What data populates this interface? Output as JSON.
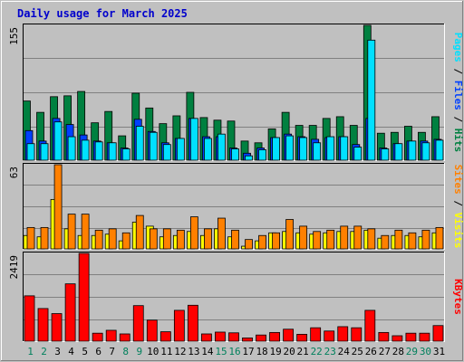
{
  "title": "Daily usage for March 2025",
  "colors": {
    "background": "#c0c0c0",
    "title": "#0000cc",
    "hits": "#008040",
    "files": "#0040ff",
    "pages": "#00e0ff",
    "visits": "#ffff00",
    "sites": "#ff8000",
    "kbytes": "#ff0000",
    "weekend_label": "#00805c",
    "weekday_label": "#000000",
    "grid": "#808080"
  },
  "chart_data": [
    {
      "type": "bar",
      "name": "hits-files-pages",
      "ymax_label": "155",
      "ymax": 155,
      "right_label": [
        "Pages",
        "Files",
        "Hits"
      ],
      "right_label_sep": " / ",
      "categories": [
        "1",
        "2",
        "3",
        "4",
        "5",
        "6",
        "7",
        "8",
        "9",
        "10",
        "11",
        "12",
        "13",
        "14",
        "15",
        "16",
        "17",
        "18",
        "19",
        "20",
        "21",
        "22",
        "23",
        "24",
        "25",
        "26",
        "27",
        "28",
        "29",
        "30",
        "31"
      ],
      "series": [
        {
          "name": "Hits",
          "values": [
            68,
            55,
            73,
            74,
            79,
            43,
            56,
            28,
            77,
            60,
            42,
            51,
            78,
            49,
            46,
            45,
            22,
            20,
            36,
            55,
            40,
            40,
            48,
            50,
            40,
            155,
            31,
            32,
            39,
            32,
            50
          ]
        },
        {
          "name": "Files",
          "values": [
            34,
            22,
            48,
            41,
            29,
            22,
            20,
            14,
            47,
            33,
            20,
            25,
            48,
            27,
            27,
            14,
            8,
            14,
            26,
            30,
            27,
            24,
            26,
            27,
            18,
            48,
            14,
            19,
            22,
            22,
            24
          ]
        },
        {
          "name": "Pages",
          "values": [
            19,
            19,
            44,
            27,
            23,
            21,
            20,
            13,
            39,
            32,
            18,
            25,
            48,
            25,
            30,
            13,
            5,
            12,
            26,
            28,
            26,
            20,
            27,
            27,
            15,
            138,
            13,
            19,
            22,
            20,
            23
          ]
        }
      ]
    },
    {
      "type": "bar",
      "name": "visits-sites",
      "ymax_label": "63",
      "ymax": 63,
      "right_label": [
        "Sites",
        "Visits"
      ],
      "right_label_sep": " / ",
      "categories": [
        "1",
        "2",
        "3",
        "4",
        "5",
        "6",
        "7",
        "8",
        "9",
        "10",
        "11",
        "12",
        "13",
        "14",
        "15",
        "16",
        "17",
        "18",
        "19",
        "20",
        "21",
        "22",
        "23",
        "24",
        "25",
        "26",
        "27",
        "28",
        "29",
        "30",
        "31"
      ],
      "series": [
        {
          "name": "Visits",
          "values": [
            10,
            9,
            37,
            15,
            10,
            10,
            11,
            6,
            20,
            17,
            9,
            10,
            13,
            10,
            15,
            9,
            2,
            6,
            12,
            13,
            12,
            11,
            12,
            13,
            13,
            14,
            8,
            10,
            10,
            9,
            12
          ]
        },
        {
          "name": "Sites",
          "values": [
            16,
            16,
            63,
            26,
            26,
            14,
            15,
            12,
            25,
            15,
            15,
            14,
            24,
            15,
            23,
            14,
            7,
            10,
            12,
            22,
            17,
            13,
            14,
            17,
            17,
            15,
            10,
            14,
            12,
            14,
            16
          ]
        }
      ]
    },
    {
      "type": "bar",
      "name": "kbytes",
      "ymax_label": "2419",
      "ymax": 2419,
      "right_label": [
        "KBytes"
      ],
      "right_label_sep": "",
      "categories": [
        "1",
        "2",
        "3",
        "4",
        "5",
        "6",
        "7",
        "8",
        "9",
        "10",
        "11",
        "12",
        "13",
        "14",
        "15",
        "16",
        "17",
        "18",
        "19",
        "20",
        "21",
        "22",
        "23",
        "24",
        "25",
        "26",
        "27",
        "28",
        "29",
        "30",
        "31"
      ],
      "series": [
        {
          "name": "KBytes",
          "values": [
            1250,
            900,
            760,
            1580,
            2419,
            220,
            300,
            200,
            980,
            580,
            260,
            850,
            990,
            200,
            250,
            230,
            90,
            170,
            240,
            330,
            190,
            370,
            280,
            400,
            370,
            850,
            240,
            150,
            220,
            220,
            430
          ]
        }
      ]
    }
  ],
  "x_labels": [
    "1",
    "2",
    "3",
    "4",
    "5",
    "6",
    "7",
    "8",
    "9",
    "10",
    "11",
    "12",
    "13",
    "14",
    "15",
    "16",
    "17",
    "18",
    "19",
    "20",
    "21",
    "22",
    "23",
    "24",
    "25",
    "26",
    "27",
    "28",
    "29",
    "30",
    "31"
  ],
  "weekend_days": [
    1,
    2,
    8,
    9,
    15,
    16,
    22,
    23,
    29,
    30
  ]
}
